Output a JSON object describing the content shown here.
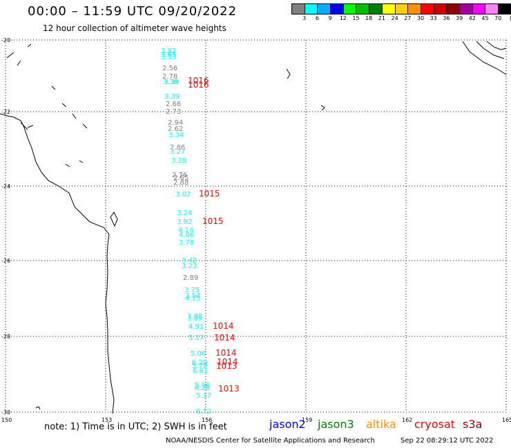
{
  "header": {
    "title": "00:00 – 11:59 UTC 09/20/2022",
    "subtitle": "12 hour collection of altimeter wave heights"
  },
  "legend": {
    "unit": "(ft)",
    "scale": [
      {
        "label": "3",
        "color": "#808080"
      },
      {
        "label": "6",
        "color": "#00ffff"
      },
      {
        "label": "9",
        "color": "#00b0ff"
      },
      {
        "label": "12",
        "color": "#0000ff"
      },
      {
        "label": "15",
        "color": "#00ff00"
      },
      {
        "label": "18",
        "color": "#00c000"
      },
      {
        "label": "21",
        "color": "#008000"
      },
      {
        "label": "24",
        "color": "#ffff00"
      },
      {
        "label": "27",
        "color": "#ffd000"
      },
      {
        "label": "30",
        "color": "#ff9000"
      },
      {
        "label": "33",
        "color": "#ff0000"
      },
      {
        "label": "36",
        "color": "#d00000"
      },
      {
        "label": "39",
        "color": "#900000"
      },
      {
        "label": "42",
        "color": "#a000a0"
      },
      {
        "label": "45",
        "color": "#ff00ff"
      },
      {
        "label": "70",
        "color": "#ff80ff"
      },
      {
        "label": "",
        "color": "#000000"
      }
    ]
  },
  "axes": {
    "lat_labels": [
      "-20",
      "-22",
      "-24",
      "-26",
      "-28",
      "-30"
    ],
    "lon_labels": [
      "150",
      "153",
      "156",
      "159",
      "162",
      "165"
    ]
  },
  "observations": [
    {
      "v": "3.82",
      "color": "#00ffff"
    },
    {
      "v": "3.65",
      "color": "#00ffff"
    },
    {
      "v": "3.53",
      "color": "#00ffff"
    },
    {
      "v": "2.56",
      "color": "#808080"
    },
    {
      "v": "2.78",
      "color": "#808080"
    },
    {
      "v": "3.38",
      "color": "#00ffff"
    },
    {
      "v": "3.39",
      "color": "#00ffff"
    },
    {
      "v": "3.39",
      "color": "#00ffff"
    },
    {
      "v": "2.66",
      "color": "#808080"
    },
    {
      "v": "2.73",
      "color": "#808080"
    },
    {
      "v": "2.94",
      "color": "#808080"
    },
    {
      "v": "2.62",
      "color": "#808080"
    },
    {
      "v": "3.34",
      "color": "#00ffff"
    },
    {
      "v": "2.86",
      "color": "#808080"
    },
    {
      "v": "3.27",
      "color": "#00ffff"
    },
    {
      "v": "3.28",
      "color": "#00ffff"
    },
    {
      "v": "2.76",
      "color": "#808080"
    },
    {
      "v": "2.65",
      "color": "#808080"
    },
    {
      "v": "2.88",
      "color": "#808080"
    },
    {
      "v": "3.02",
      "color": "#00ffff"
    },
    {
      "v": "3.24",
      "color": "#00ffff"
    },
    {
      "v": "3.92",
      "color": "#00ffff"
    },
    {
      "v": "4.14",
      "color": "#00ffff"
    },
    {
      "v": "4.06",
      "color": "#00ffff"
    },
    {
      "v": "3.78",
      "color": "#00ffff"
    },
    {
      "v": "3.42",
      "color": "#00ffff"
    },
    {
      "v": "3.23",
      "color": "#00ffff"
    },
    {
      "v": "2.89",
      "color": "#808080"
    },
    {
      "v": "3.75",
      "color": "#00ffff"
    },
    {
      "v": "3.54",
      "color": "#00ffff"
    },
    {
      "v": "4.15",
      "color": "#00ffff"
    },
    {
      "v": "3.88",
      "color": "#00ffff"
    },
    {
      "v": "3.89",
      "color": "#00ffff"
    },
    {
      "v": "4.91",
      "color": "#00ffff"
    },
    {
      "v": "5.17",
      "color": "#00ffff"
    },
    {
      "v": "5.06",
      "color": "#00ffff"
    },
    {
      "v": "6.20",
      "color": "#00ffff"
    },
    {
      "v": "5.79",
      "color": "#00ffff"
    },
    {
      "v": "6.61",
      "color": "#00ffff"
    },
    {
      "v": "5.96",
      "color": "#00ffff"
    },
    {
      "v": "6.28",
      "color": "#00ffff"
    },
    {
      "v": "5.17",
      "color": "#00ffff"
    },
    {
      "v": "6.12",
      "color": "#00ffff"
    }
  ],
  "pressure_labels": [
    "1016",
    "1016",
    "1015",
    "1015",
    "1014",
    "1014",
    "1014",
    "1014",
    "1013",
    "1013"
  ],
  "footer": {
    "note": "note: 1) Time is in UTC; 2) SWH is in feet",
    "satellites": [
      {
        "name": "jason2",
        "color": "#0000ff"
      },
      {
        "name": "jason3",
        "color": "#008000"
      },
      {
        "name": "altika",
        "color": "#ff9000"
      },
      {
        "name": "cryosat",
        "color": "#ff0000"
      },
      {
        "name": "s3a",
        "color": "#900000"
      }
    ],
    "credit": "NOAA/NESDIS Center for Satellite Applications and Research",
    "timestamp": "Sep 22 08:29:12 UTC 2022"
  }
}
